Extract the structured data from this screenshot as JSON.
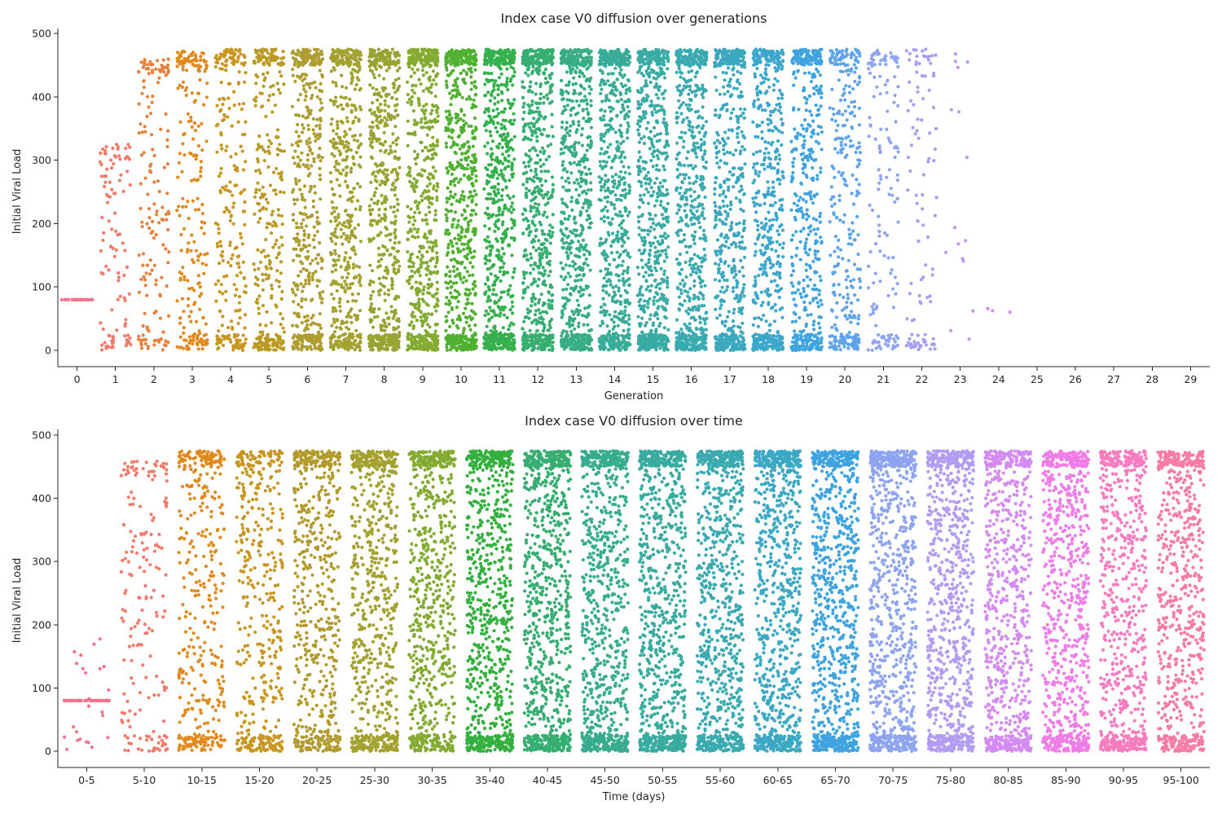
{
  "chart_data": [
    {
      "type": "scatter",
      "subtype": "strip",
      "title": "Index case V0 diffusion over generations",
      "xlabel": "Generation",
      "ylabel": "Initial Viral Load",
      "ylim": [
        -25,
        505
      ],
      "yticks": [
        0,
        100,
        200,
        300,
        400,
        500
      ],
      "grid": false,
      "categories": [
        "0",
        "1",
        "2",
        "3",
        "4",
        "5",
        "6",
        "7",
        "8",
        "9",
        "10",
        "11",
        "12",
        "13",
        "14",
        "15",
        "16",
        "17",
        "18",
        "19",
        "20",
        "21",
        "22",
        "23",
        "24",
        "25",
        "26",
        "27",
        "28",
        "29"
      ],
      "series": [
        {
          "category": "0",
          "color": "#f77189",
          "count": 40,
          "values_min": 80,
          "values_max": 80
        },
        {
          "category": "1",
          "color": "#f27b6b",
          "count": 110,
          "values_min": 0,
          "values_max": 325
        },
        {
          "category": "2",
          "color": "#e8803b",
          "count": 160,
          "values_min": 0,
          "values_max": 460
        },
        {
          "category": "3",
          "color": "#e08a1e",
          "count": 230,
          "values_min": 0,
          "values_max": 472
        },
        {
          "category": "4",
          "color": "#c8951f",
          "count": 260,
          "values_min": 0,
          "values_max": 475
        },
        {
          "category": "5",
          "color": "#bb9a24",
          "count": 330,
          "values_min": 0,
          "values_max": 475
        },
        {
          "category": "6",
          "color": "#ae9d31",
          "count": 500,
          "values_min": 0,
          "values_max": 475
        },
        {
          "category": "7",
          "color": "#a3a12f",
          "count": 550,
          "values_min": 0,
          "values_max": 475
        },
        {
          "category": "8",
          "color": "#97a431",
          "count": 620,
          "values_min": 0,
          "values_max": 475
        },
        {
          "category": "9",
          "color": "#84ab31",
          "count": 650,
          "values_min": 0,
          "values_max": 475
        },
        {
          "category": "10",
          "color": "#50b131",
          "count": 700,
          "values_min": 0,
          "values_max": 475
        },
        {
          "category": "11",
          "color": "#34b04d",
          "count": 700,
          "values_min": 0,
          "values_max": 475
        },
        {
          "category": "12",
          "color": "#36ae72",
          "count": 700,
          "values_min": 0,
          "values_max": 475
        },
        {
          "category": "13",
          "color": "#37ad86",
          "count": 700,
          "values_min": 0,
          "values_max": 475
        },
        {
          "category": "14",
          "color": "#38ac97",
          "count": 700,
          "values_min": 0,
          "values_max": 475
        },
        {
          "category": "15",
          "color": "#39aba4",
          "count": 700,
          "values_min": 0,
          "values_max": 475
        },
        {
          "category": "16",
          "color": "#3aaab1",
          "count": 650,
          "values_min": 0,
          "values_max": 475
        },
        {
          "category": "17",
          "color": "#3ba8be",
          "count": 600,
          "values_min": 0,
          "values_max": 475
        },
        {
          "category": "18",
          "color": "#3ca6cb",
          "count": 550,
          "values_min": 0,
          "values_max": 475
        },
        {
          "category": "19",
          "color": "#3ea3de",
          "count": 500,
          "values_min": 0,
          "values_max": 475
        },
        {
          "category": "20",
          "color": "#5fa4ea",
          "count": 330,
          "values_min": 0,
          "values_max": 475
        },
        {
          "category": "21",
          "color": "#8ea4f0",
          "count": 160,
          "values_min": 0,
          "values_max": 475
        },
        {
          "category": "22",
          "color": "#a59ff1",
          "count": 110,
          "values_min": 0,
          "values_max": 475
        },
        {
          "category": "23",
          "color": "#bc97f1",
          "count": 16,
          "values_min": 0,
          "values_max": 470
        },
        {
          "category": "24",
          "color": "#d589f0",
          "count": 3,
          "values_min": 50,
          "values_max": 408
        },
        {
          "category": "25",
          "color": "#ea7ef0",
          "count": 0
        },
        {
          "category": "26",
          "color": "#f47ddd",
          "count": 0
        },
        {
          "category": "27",
          "color": "#f67dc6",
          "count": 0
        },
        {
          "category": "28",
          "color": "#f77bb2",
          "count": 0
        },
        {
          "category": "29",
          "color": "#f7789e",
          "count": 0
        }
      ]
    },
    {
      "type": "scatter",
      "subtype": "strip",
      "title": "Index case V0 diffusion over time",
      "xlabel": "Time (days)",
      "ylabel": "Initial Viral Load",
      "ylim": [
        -25,
        505
      ],
      "yticks": [
        0,
        100,
        200,
        300,
        400,
        500
      ],
      "grid": false,
      "categories": [
        "0-5",
        "5-10",
        "10-15",
        "15-20",
        "20-25",
        "25-30",
        "30-35",
        "35-40",
        "40-45",
        "45-50",
        "50-55",
        "55-60",
        "60-65",
        "65-70",
        "70-75",
        "75-80",
        "80-85",
        "85-90",
        "90-95",
        "95-100"
      ],
      "series": [
        {
          "category": "0-5",
          "color": "#f77189",
          "count": 80,
          "values_min": 0,
          "values_max": 180
        },
        {
          "category": "5-10",
          "color": "#f27b6b",
          "count": 180,
          "values_min": 0,
          "values_max": 460
        },
        {
          "category": "10-15",
          "color": "#e08a1e",
          "count": 400,
          "values_min": 0,
          "values_max": 475
        },
        {
          "category": "15-20",
          "color": "#c8951f",
          "count": 450,
          "values_min": 0,
          "values_max": 475
        },
        {
          "category": "20-25",
          "color": "#b29b2c",
          "count": 600,
          "values_min": 0,
          "values_max": 475
        },
        {
          "category": "25-30",
          "color": "#a3a12f",
          "count": 700,
          "values_min": 0,
          "values_max": 475
        },
        {
          "category": "30-35",
          "color": "#84ab31",
          "count": 750,
          "values_min": 0,
          "values_max": 475
        },
        {
          "category": "35-40",
          "color": "#34b03e",
          "count": 850,
          "values_min": 0,
          "values_max": 475
        },
        {
          "category": "40-45",
          "color": "#36ae72",
          "count": 900,
          "values_min": 0,
          "values_max": 475
        },
        {
          "category": "45-50",
          "color": "#37ad8d",
          "count": 900,
          "values_min": 0,
          "values_max": 475
        },
        {
          "category": "50-55",
          "color": "#38ab9f",
          "count": 900,
          "values_min": 0,
          "values_max": 475
        },
        {
          "category": "55-60",
          "color": "#39aab0",
          "count": 900,
          "values_min": 0,
          "values_max": 475
        },
        {
          "category": "60-65",
          "color": "#3ba8c4",
          "count": 900,
          "values_min": 0,
          "values_max": 475
        },
        {
          "category": "65-70",
          "color": "#3ea3de",
          "count": 900,
          "values_min": 0,
          "values_max": 475
        },
        {
          "category": "70-75",
          "color": "#8ea4f0",
          "count": 900,
          "values_min": 0,
          "values_max": 475
        },
        {
          "category": "75-80",
          "color": "#b19cf1",
          "count": 850,
          "values_min": 0,
          "values_max": 475
        },
        {
          "category": "80-85",
          "color": "#d48af0",
          "count": 800,
          "values_min": 0,
          "values_max": 475
        },
        {
          "category": "85-90",
          "color": "#f07ce8",
          "count": 800,
          "values_min": 0,
          "values_max": 475
        },
        {
          "category": "90-95",
          "color": "#f77cbf",
          "count": 700,
          "values_min": 0,
          "values_max": 475
        },
        {
          "category": "95-100",
          "color": "#f77ba4",
          "count": 700,
          "values_min": 0,
          "values_max": 475
        }
      ]
    }
  ]
}
